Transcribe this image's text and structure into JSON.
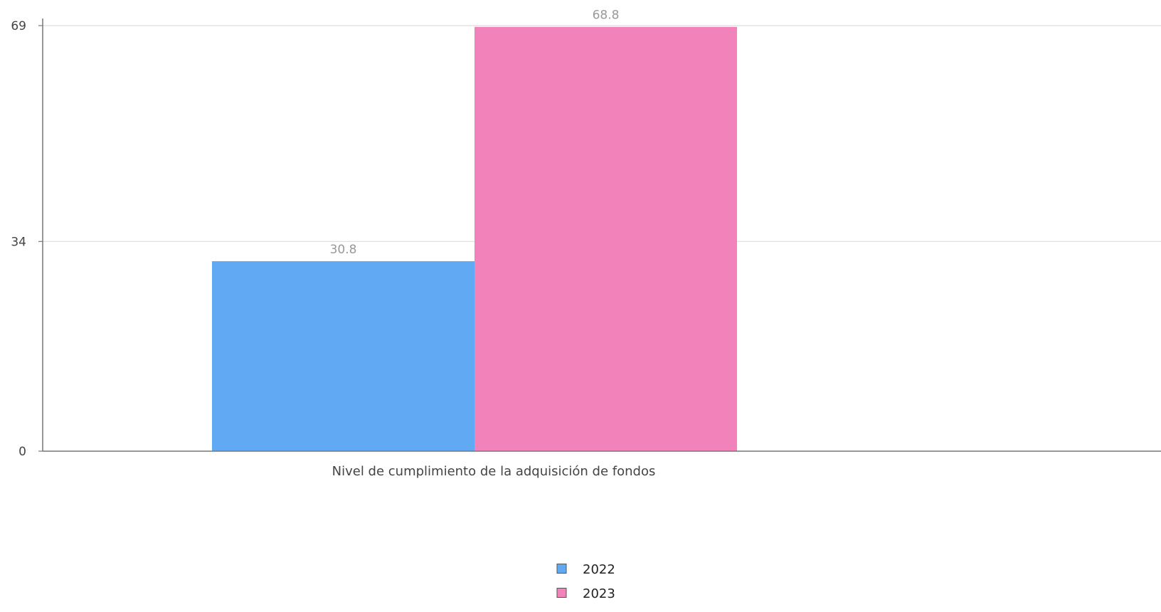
{
  "chart_data": {
    "type": "bar",
    "categories": [
      "Nivel de cumplimiento de la adquisición de fondos"
    ],
    "series": [
      {
        "name": "2022",
        "values": [
          30.8
        ],
        "color": "#62a9f3"
      },
      {
        "name": "2023",
        "values": [
          68.8
        ],
        "color": "#f282ba"
      }
    ],
    "yticks": [
      0,
      34,
      69
    ],
    "ylim": [
      0,
      69
    ],
    "grid": true,
    "legend_position": "bottom-center",
    "gridline_color": "#dddddd",
    "axis_color": "#777777"
  }
}
